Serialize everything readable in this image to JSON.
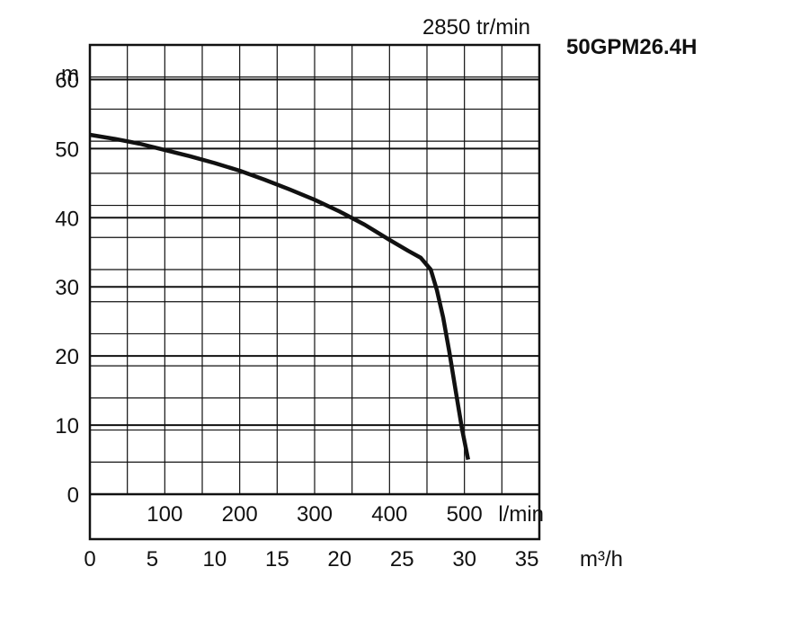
{
  "chart_data": {
    "type": "line",
    "model": "50GPM26.4H",
    "speed_label": "2850 tr/min",
    "y_unit": "m",
    "y_ticks": [
      0,
      10,
      20,
      30,
      40,
      50,
      60
    ],
    "ylim": [
      0,
      65
    ],
    "flow_lmin_ticks": [
      100,
      200,
      300,
      400,
      500
    ],
    "flow_lmin_unit": "l/min",
    "flow_m3h_ticks": [
      0,
      5,
      10,
      15,
      20,
      25,
      30,
      35
    ],
    "flow_m3h_unit": "m³/h",
    "xlim": [
      0,
      36
    ],
    "grid": true,
    "series": [
      {
        "x": [
          0,
          2,
          4,
          6,
          8,
          10,
          12,
          14,
          16,
          18,
          20,
          22,
          24,
          25.5,
          26.5,
          27.3,
          27.8,
          28.3,
          28.8,
          29.3,
          29.8,
          30.3
        ],
        "y": [
          52,
          51.4,
          50.7,
          49.8,
          48.9,
          47.9,
          46.8,
          45.5,
          44.1,
          42.6,
          40.9,
          39,
          36.8,
          35.2,
          34.2,
          32.5,
          29.5,
          25.5,
          20.5,
          15,
          9.5,
          5
        ]
      }
    ]
  }
}
